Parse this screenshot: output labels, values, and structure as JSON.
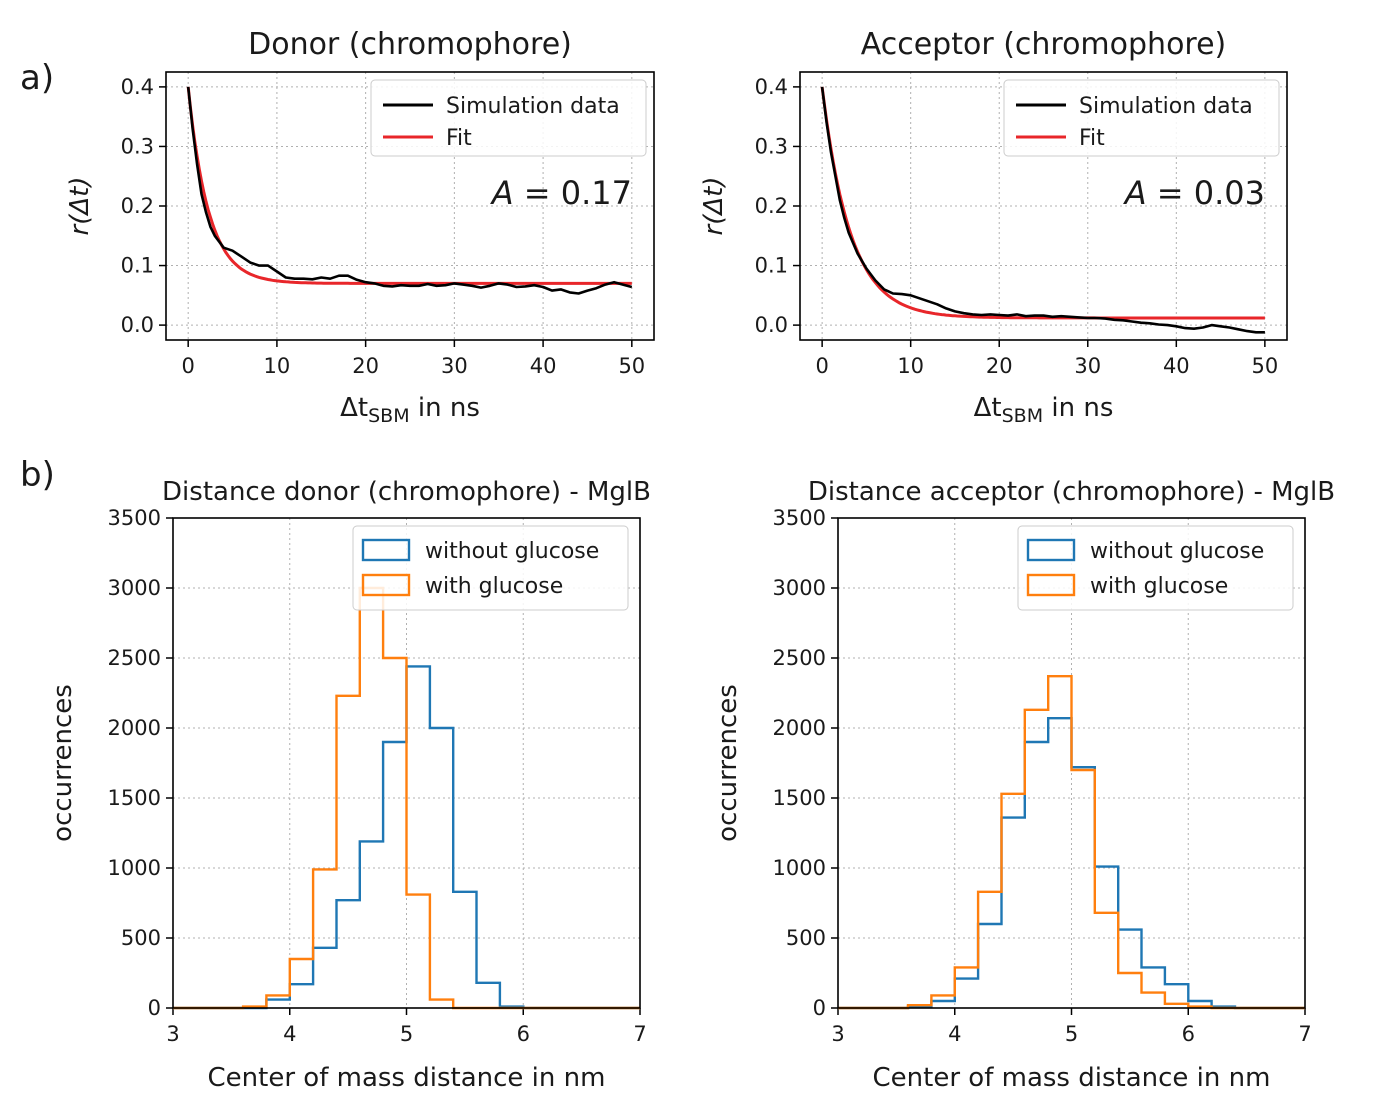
{
  "figure": {
    "panel_labels": [
      "a)",
      "b)"
    ]
  },
  "chart_data": [
    {
      "id": "a1",
      "type": "line",
      "title": "Donor (chromophore)",
      "xlabel_main": "Δt",
      "xlabel_sub": "SBM",
      "xlabel_rest": " in ns",
      "ylabel": "r(Δt)",
      "xlim": [
        -2.5,
        52.5
      ],
      "ylim": [
        -0.025,
        0.425
      ],
      "xticks": [
        0,
        10,
        20,
        30,
        40,
        50
      ],
      "xtick_labels": [
        "0",
        "10",
        "20",
        "30",
        "40",
        "50"
      ],
      "yticks": [
        0.0,
        0.1,
        0.2,
        0.3,
        0.4
      ],
      "ytick_labels": [
        "0.0",
        "0.1",
        "0.2",
        "0.3",
        "0.4"
      ],
      "grid": true,
      "legend_position": "upper-right",
      "legend": [
        "Simulation data",
        "Fit"
      ],
      "annotation_A": "A",
      "annotation_value": " = 0.17",
      "colors": {
        "simulation": "#000000",
        "fit": "#e8262a"
      },
      "series": [
        {
          "name": "Simulation data",
          "x": [
            0,
            0.5,
            1,
            1.5,
            2,
            2.5,
            3,
            4,
            5,
            6,
            7,
            8,
            9,
            10,
            11,
            12,
            13,
            14,
            15,
            16,
            17,
            18,
            19,
            20,
            21,
            22,
            23,
            24,
            25,
            26,
            27,
            28,
            29,
            30,
            31,
            32,
            33,
            34,
            35,
            36,
            37,
            38,
            39,
            40,
            41,
            42,
            43,
            44,
            45,
            46,
            47,
            48,
            49,
            50
          ],
          "y": [
            0.4,
            0.33,
            0.27,
            0.22,
            0.19,
            0.165,
            0.15,
            0.13,
            0.125,
            0.115,
            0.105,
            0.1,
            0.1,
            0.09,
            0.08,
            0.078,
            0.078,
            0.077,
            0.08,
            0.078,
            0.083,
            0.083,
            0.076,
            0.072,
            0.07,
            0.066,
            0.065,
            0.067,
            0.066,
            0.066,
            0.069,
            0.066,
            0.067,
            0.07,
            0.068,
            0.066,
            0.063,
            0.066,
            0.07,
            0.068,
            0.064,
            0.065,
            0.067,
            0.064,
            0.058,
            0.06,
            0.055,
            0.053,
            0.058,
            0.062,
            0.068,
            0.072,
            0.068,
            0.064
          ]
        },
        {
          "name": "Fit",
          "model": "exp",
          "y0": 0.4,
          "offset": 0.07,
          "tau": 2.3
        }
      ]
    },
    {
      "id": "a2",
      "type": "line",
      "title": "Acceptor (chromophore)",
      "xlabel_main": "Δt",
      "xlabel_sub": "SBM",
      "xlabel_rest": " in ns",
      "ylabel": "r(Δt)",
      "xlim": [
        -2.5,
        52.5
      ],
      "ylim": [
        -0.025,
        0.425
      ],
      "xticks": [
        0,
        10,
        20,
        30,
        40,
        50
      ],
      "xtick_labels": [
        "0",
        "10",
        "20",
        "30",
        "40",
        "50"
      ],
      "yticks": [
        0.0,
        0.1,
        0.2,
        0.3,
        0.4
      ],
      "ytick_labels": [
        "0.0",
        "0.1",
        "0.2",
        "0.3",
        "0.4"
      ],
      "grid": true,
      "legend_position": "upper-right",
      "legend": [
        "Simulation data",
        "Fit"
      ],
      "annotation_A": "A",
      "annotation_value": " = 0.03",
      "colors": {
        "simulation": "#000000",
        "fit": "#e8262a"
      },
      "series": [
        {
          "name": "Simulation data",
          "x": [
            0,
            0.5,
            1,
            1.5,
            2,
            2.5,
            3,
            4,
            5,
            6,
            7,
            8,
            9,
            10,
            11,
            12,
            13,
            14,
            15,
            16,
            17,
            18,
            19,
            20,
            21,
            22,
            23,
            24,
            25,
            26,
            27,
            28,
            29,
            30,
            31,
            32,
            33,
            34,
            35,
            36,
            37,
            38,
            39,
            40,
            41,
            42,
            43,
            44,
            45,
            46,
            47,
            48,
            49,
            50
          ],
          "y": [
            0.4,
            0.34,
            0.29,
            0.25,
            0.21,
            0.18,
            0.155,
            0.12,
            0.095,
            0.075,
            0.06,
            0.053,
            0.052,
            0.05,
            0.045,
            0.04,
            0.035,
            0.028,
            0.023,
            0.02,
            0.018,
            0.017,
            0.018,
            0.017,
            0.016,
            0.018,
            0.015,
            0.016,
            0.016,
            0.014,
            0.015,
            0.014,
            0.013,
            0.012,
            0.012,
            0.011,
            0.009,
            0.008,
            0.006,
            0.004,
            0.003,
            0.001,
            0.0,
            -0.002,
            -0.005,
            -0.006,
            -0.004,
            0.0,
            -0.002,
            -0.004,
            -0.007,
            -0.01,
            -0.012,
            -0.012
          ]
        },
        {
          "name": "Fit",
          "model": "exp",
          "y0": 0.4,
          "offset": 0.012,
          "tau": 3.2
        }
      ]
    },
    {
      "id": "b1",
      "type": "bar",
      "histogram": true,
      "title": "Distance donor (chromophore) - MglB",
      "xlabel": "Center of mass distance in nm",
      "ylabel": "occurrences",
      "xlim": [
        3,
        7
      ],
      "ylim": [
        0,
        3500
      ],
      "xticks": [
        3,
        4,
        5,
        6,
        7
      ],
      "xtick_labels": [
        "3",
        "4",
        "5",
        "6",
        "7"
      ],
      "yticks": [
        0,
        500,
        1000,
        1500,
        2000,
        2500,
        3000,
        3500
      ],
      "ytick_labels": [
        "0",
        "500",
        "1000",
        "1500",
        "2000",
        "2500",
        "3000",
        "3500"
      ],
      "grid": true,
      "legend_position": "upper-right",
      "legend": [
        "without glucose",
        "with glucose"
      ],
      "colors": {
        "without": "#1f77b4",
        "with": "#ff7f0e"
      },
      "bin_edges": [
        3.0,
        3.2,
        3.4,
        3.6,
        3.8,
        4.0,
        4.2,
        4.4,
        4.6,
        4.8,
        5.0,
        5.2,
        5.4,
        5.6,
        5.8,
        6.0,
        6.2,
        6.4,
        6.6,
        6.8,
        7.0
      ],
      "series": [
        {
          "name": "without glucose",
          "values": [
            0,
            0,
            0,
            0,
            60,
            170,
            430,
            770,
            1190,
            1900,
            2440,
            2000,
            830,
            180,
            10,
            0,
            0,
            0,
            0,
            0
          ]
        },
        {
          "name": "with glucose",
          "values": [
            0,
            0,
            0,
            10,
            90,
            350,
            990,
            2230,
            3000,
            2500,
            810,
            60,
            0,
            0,
            0,
            0,
            0,
            0,
            0,
            0
          ]
        }
      ]
    },
    {
      "id": "b2",
      "type": "bar",
      "histogram": true,
      "title": "Distance acceptor (chromophore) - MglB",
      "xlabel": "Center of mass distance in nm",
      "ylabel": "occurrences",
      "xlim": [
        3,
        7
      ],
      "ylim": [
        0,
        3500
      ],
      "xticks": [
        3,
        4,
        5,
        6,
        7
      ],
      "xtick_labels": [
        "3",
        "4",
        "5",
        "6",
        "7"
      ],
      "yticks": [
        0,
        500,
        1000,
        1500,
        2000,
        2500,
        3000,
        3500
      ],
      "ytick_labels": [
        "0",
        "500",
        "1000",
        "1500",
        "2000",
        "2500",
        "3000",
        "3500"
      ],
      "grid": true,
      "legend_position": "upper-right",
      "legend": [
        "without glucose",
        "with glucose"
      ],
      "colors": {
        "without": "#1f77b4",
        "with": "#ff7f0e"
      },
      "bin_edges": [
        3.0,
        3.2,
        3.4,
        3.6,
        3.8,
        4.0,
        4.2,
        4.4,
        4.6,
        4.8,
        5.0,
        5.2,
        5.4,
        5.6,
        5.8,
        6.0,
        6.2,
        6.4,
        6.6,
        6.8,
        7.0
      ],
      "series": [
        {
          "name": "without glucose",
          "values": [
            0,
            0,
            0,
            10,
            50,
            210,
            600,
            1360,
            1900,
            2070,
            1720,
            1010,
            560,
            290,
            170,
            50,
            10,
            0,
            0,
            0
          ]
        },
        {
          "name": "with glucose",
          "values": [
            0,
            0,
            0,
            20,
            90,
            290,
            830,
            1530,
            2130,
            2370,
            1700,
            680,
            250,
            110,
            30,
            10,
            0,
            0,
            0,
            0
          ]
        }
      ]
    }
  ]
}
